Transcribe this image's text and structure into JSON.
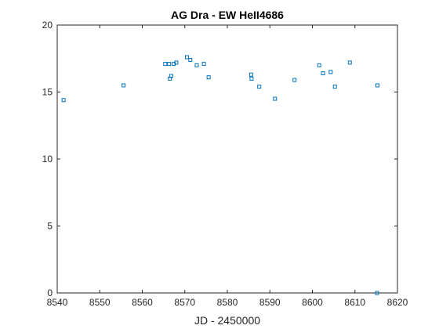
{
  "chart_data": {
    "type": "scatter",
    "title": "AG Dra - EW HeII4686",
    "xlabel": "JD - 2450000",
    "ylabel": "",
    "xlim": [
      8540,
      8620
    ],
    "ylim": [
      0,
      20
    ],
    "xticks": [
      8540,
      8550,
      8560,
      8570,
      8580,
      8590,
      8600,
      8610,
      8620
    ],
    "yticks": [
      0,
      5,
      10,
      15,
      20
    ],
    "xtick_labels": [
      "8540",
      "8550",
      "8560",
      "8570",
      "8580",
      "8590",
      "8600",
      "8610",
      "8620"
    ],
    "ytick_labels": [
      "0",
      "5",
      "10",
      "15",
      "20"
    ],
    "grid": false,
    "marker": "square",
    "colors": {
      "marker": "#0072BD",
      "axis": "#262626",
      "background": "#ffffff"
    },
    "series": [
      {
        "points": [
          {
            "x": 8541.5,
            "y": 14.4
          },
          {
            "x": 8555.6,
            "y": 15.5
          },
          {
            "x": 8565.4,
            "y": 17.1
          },
          {
            "x": 8566.3,
            "y": 17.1
          },
          {
            "x": 8566.5,
            "y": 16.0
          },
          {
            "x": 8566.8,
            "y": 16.2
          },
          {
            "x": 8567.4,
            "y": 17.1
          },
          {
            "x": 8568.0,
            "y": 17.2
          },
          {
            "x": 8570.5,
            "y": 17.6
          },
          {
            "x": 8571.3,
            "y": 17.4
          },
          {
            "x": 8572.8,
            "y": 17.0
          },
          {
            "x": 8574.5,
            "y": 17.1
          },
          {
            "x": 8575.6,
            "y": 16.1
          },
          {
            "x": 8585.6,
            "y": 16.3
          },
          {
            "x": 8585.7,
            "y": 16.0
          },
          {
            "x": 8587.5,
            "y": 15.4
          },
          {
            "x": 8591.2,
            "y": 14.5
          },
          {
            "x": 8595.8,
            "y": 15.9
          },
          {
            "x": 8601.6,
            "y": 17.0
          },
          {
            "x": 8602.5,
            "y": 16.4
          },
          {
            "x": 8604.3,
            "y": 16.5
          },
          {
            "x": 8605.3,
            "y": 15.4
          },
          {
            "x": 8608.8,
            "y": 17.2
          },
          {
            "x": 8615.3,
            "y": 15.5
          },
          {
            "x": 8615.2,
            "y": 0.0
          }
        ]
      }
    ]
  }
}
